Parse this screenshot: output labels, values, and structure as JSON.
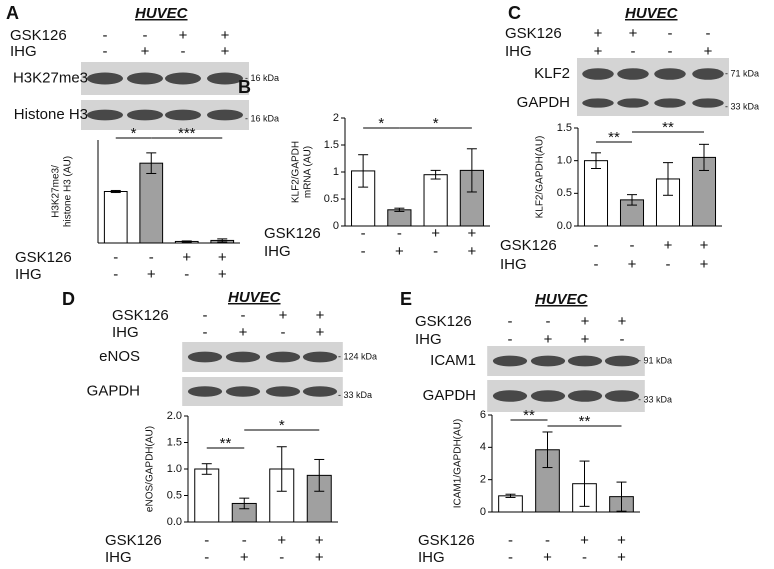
{
  "chart_data": [
    {
      "type": "bar",
      "panel": "A",
      "cell_line": "HUVEC",
      "ylabel": [
        "H3K27me3/",
        "histone H3 (AU)"
      ],
      "ylim": [
        0,
        2
      ],
      "values": [
        1.0,
        1.55,
        0.03,
        0.05
      ],
      "errors": [
        0.02,
        0.2,
        0.01,
        0.03
      ],
      "colors": [
        "#ffffff",
        "#a0a0a0",
        "#ffffff",
        "#a0a0a0"
      ],
      "significance": [
        "*",
        "***"
      ],
      "conditions": [
        {
          "name": "GSK126",
          "signs": [
            "-",
            "-",
            "+",
            "+"
          ]
        },
        {
          "name": "IHG",
          "signs": [
            "-",
            "+",
            "-",
            "+"
          ]
        }
      ],
      "lanes": [
        {
          "name": "GSK126",
          "signs": [
            "-",
            "-",
            "+",
            "+"
          ]
        },
        {
          "name": "IHG",
          "signs": [
            "-",
            "+",
            "-",
            "+"
          ]
        }
      ],
      "blots": [
        {
          "label": "H3K27me3",
          "kda": "- 16 kDa"
        },
        {
          "label": "Histone H3",
          "kda": "- 16 kDa"
        }
      ]
    },
    {
      "type": "bar",
      "panel": "B",
      "ylabel": [
        "KLF2/GAPDH",
        "mRNA (AU)"
      ],
      "ylim": [
        0,
        2
      ],
      "yticks": [
        0,
        0.5,
        1,
        1.5,
        2
      ],
      "values": [
        1.02,
        0.3,
        0.95,
        1.03
      ],
      "errors": [
        0.3,
        0.03,
        0.08,
        0.4
      ],
      "colors": [
        "#ffffff",
        "#a0a0a0",
        "#ffffff",
        "#a0a0a0"
      ],
      "significance": [
        "*",
        "*"
      ],
      "conditions": [
        {
          "name": "GSK126",
          "signs": [
            "-",
            "-",
            "+",
            "+"
          ]
        },
        {
          "name": "IHG",
          "signs": [
            "-",
            "+",
            "-",
            "+"
          ]
        }
      ]
    },
    {
      "type": "bar",
      "panel": "C",
      "cell_line": "HUVEC",
      "ylabel": [
        "KLF2/GAPDH(AU)"
      ],
      "ylim": [
        0,
        1.5
      ],
      "yticks": [
        {
          "value": 0,
          "label": "0.0"
        },
        0.5,
        {
          "value": 1,
          "label": "1.0"
        },
        1.5
      ],
      "values": [
        1.0,
        0.4,
        0.72,
        1.05
      ],
      "errors": [
        0.12,
        0.08,
        0.25,
        0.2
      ],
      "colors": [
        "#ffffff",
        "#a0a0a0",
        "#ffffff",
        "#a0a0a0"
      ],
      "significance": [
        "**",
        "**"
      ],
      "conditions": [
        {
          "name": "GSK126",
          "signs": [
            "-",
            "-",
            "+",
            "+"
          ]
        },
        {
          "name": "IHG",
          "signs": [
            "-",
            "+",
            "-",
            "+"
          ]
        }
      ],
      "lanes": [
        {
          "name": "GSK126",
          "signs": [
            "+",
            "+",
            "-",
            "-"
          ]
        },
        {
          "name": "IHG",
          "signs": [
            "+",
            "-",
            "-",
            "+"
          ]
        }
      ],
      "blots": [
        {
          "label": "KLF2",
          "kda": "- 71 kDa"
        },
        {
          "label": "GAPDH",
          "kda": "- 33 kDa"
        }
      ]
    },
    {
      "type": "bar",
      "panel": "D",
      "cell_line": "HUVEC",
      "ylabel": [
        "eNOS/GAPDH(AU)"
      ],
      "ylim": [
        0,
        2
      ],
      "yticks": [
        {
          "value": 0,
          "label": "0.0"
        },
        0.5,
        {
          "value": 1,
          "label": "1.0"
        },
        1.5,
        {
          "value": 2,
          "label": "2.0"
        }
      ],
      "values": [
        1.0,
        0.35,
        1.0,
        0.88
      ],
      "errors": [
        0.1,
        0.1,
        0.42,
        0.3
      ],
      "colors": [
        "#ffffff",
        "#a0a0a0",
        "#ffffff",
        "#a0a0a0"
      ],
      "significance": [
        "**",
        "*"
      ],
      "conditions": [
        {
          "name": "GSK126",
          "signs": [
            "-",
            "-",
            "+",
            "+"
          ]
        },
        {
          "name": "IHG",
          "signs": [
            "-",
            "+",
            "-",
            "+"
          ]
        }
      ],
      "lanes": [
        {
          "name": "GSK126",
          "signs": [
            "-",
            "-",
            "+",
            "+"
          ]
        },
        {
          "name": "IHG",
          "signs": [
            "-",
            "+",
            "-",
            "+"
          ]
        }
      ],
      "blots": [
        {
          "label": "eNOS",
          "kda": "- 124 kDa"
        },
        {
          "label": "GAPDH",
          "kda": "- 33 kDa"
        }
      ]
    },
    {
      "type": "bar",
      "panel": "E",
      "cell_line": "HUVEC",
      "ylabel": [
        "ICAM1/GAPDH(AU)"
      ],
      "ylim": [
        0,
        6
      ],
      "yticks": [
        0,
        2,
        4,
        6
      ],
      "values": [
        1.0,
        3.85,
        1.75,
        0.95
      ],
      "errors": [
        0.1,
        1.1,
        1.4,
        0.9
      ],
      "colors": [
        "#ffffff",
        "#a0a0a0",
        "#ffffff",
        "#a0a0a0"
      ],
      "significance": [
        "**",
        "**"
      ],
      "conditions": [
        {
          "name": "GSK126",
          "signs": [
            "-",
            "-",
            "+",
            "+"
          ]
        },
        {
          "name": "IHG",
          "signs": [
            "-",
            "+",
            "-",
            "+"
          ]
        }
      ],
      "lanes": [
        {
          "name": "GSK126",
          "signs": [
            "-",
            "-",
            "+",
            "+"
          ]
        },
        {
          "name": "IHG",
          "signs": [
            "-",
            "+",
            "+",
            "-"
          ]
        }
      ],
      "blots": [
        {
          "label": "ICAM1",
          "kda": "- 91 kDa"
        },
        {
          "label": "GAPDH",
          "kda": "- 33 kDa"
        }
      ]
    }
  ]
}
